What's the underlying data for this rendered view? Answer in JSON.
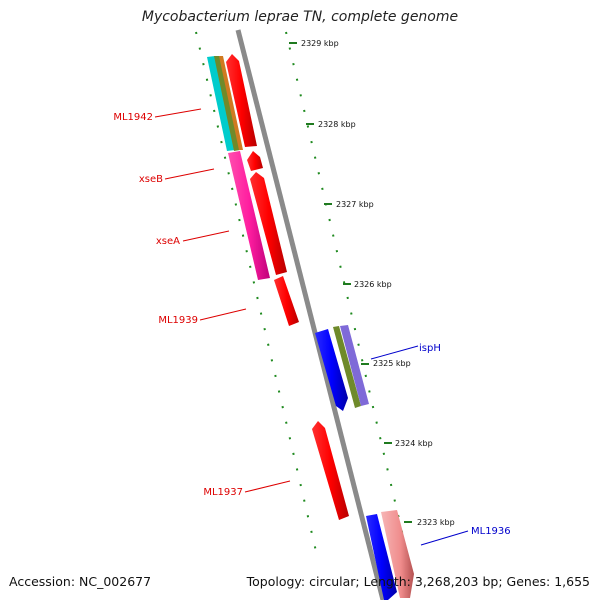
{
  "title": "Mycobacterium leprae TN, complete genome",
  "footer": {
    "accession": "Accession: NC_002677",
    "summary": "Topology: circular; Length: 3,268,203 bp; Genes: 1,655"
  },
  "colors": {
    "backbone": "#8a8a8a",
    "grid_dots": "#1f8a1f",
    "red_label": "#dd0000",
    "blue_label": "#0000cc"
  },
  "scale_ticks": [
    "2329 kbp",
    "2328 kbp",
    "2327 kbp",
    "2326 kbp",
    "2325 kbp",
    "2324 kbp",
    "2323 kbp"
  ],
  "gene_labels": [
    {
      "text": "ML1942",
      "color": "red"
    },
    {
      "text": "xseB",
      "color": "red"
    },
    {
      "text": "xseA",
      "color": "red"
    },
    {
      "text": "ML1939",
      "color": "red"
    },
    {
      "text": "ispH",
      "color": "blue"
    },
    {
      "text": "ML1937",
      "color": "red"
    },
    {
      "text": "ML1936",
      "color": "blue"
    }
  ]
}
